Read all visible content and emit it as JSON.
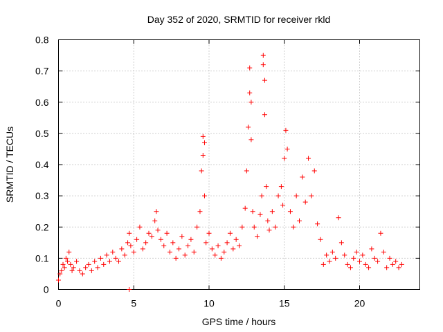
{
  "chart_data": {
    "type": "scatter",
    "title": "Day 352 of 2020, SRMTID for receiver rkld",
    "xlabel": "GPS time / hours",
    "ylabel": "SRMTID / TECUs",
    "xlim": [
      0,
      24
    ],
    "ylim": [
      0,
      0.8
    ],
    "xticks": [
      0,
      5,
      10,
      15,
      20
    ],
    "xtick_labels": [
      "0",
      "5",
      "10",
      "15",
      "20"
    ],
    "yticks": [
      0,
      0.1,
      0.2,
      0.3,
      0.4,
      0.5,
      0.6,
      0.7,
      0.8
    ],
    "ytick_labels": [
      "0",
      "0.1",
      "0.2",
      "0.3",
      "0.4",
      "0.5",
      "0.6",
      "0.7",
      "0.8"
    ],
    "grid": true,
    "marker": "plus",
    "series": [
      {
        "name": "SRMTID",
        "color": "#ff0000",
        "x": [
          0.0,
          0.1,
          0.2,
          0.3,
          0.4,
          0.5,
          0.6,
          0.7,
          0.8,
          0.9,
          1.0,
          1.2,
          1.4,
          1.6,
          1.8,
          2.0,
          2.2,
          2.4,
          2.6,
          2.8,
          3.0,
          3.2,
          3.4,
          3.6,
          3.8,
          4.0,
          4.2,
          4.4,
          4.6,
          4.7,
          4.8,
          5.0,
          5.2,
          5.4,
          5.6,
          5.8,
          6.0,
          6.2,
          6.4,
          6.5,
          6.6,
          6.8,
          7.0,
          7.2,
          7.4,
          7.6,
          7.8,
          8.0,
          8.2,
          8.4,
          8.6,
          8.8,
          9.0,
          9.2,
          9.4,
          9.5,
          9.6,
          9.6,
          9.7,
          9.7,
          9.8,
          10.0,
          10.2,
          10.4,
          10.6,
          10.8,
          11.0,
          11.2,
          11.4,
          11.6,
          11.8,
          12.0,
          12.2,
          12.4,
          12.5,
          12.6,
          12.7,
          12.7,
          12.8,
          12.8,
          12.9,
          13.0,
          13.2,
          13.4,
          13.5,
          13.6,
          13.6,
          13.7,
          13.7,
          13.8,
          13.9,
          14.0,
          14.2,
          14.4,
          14.6,
          14.8,
          14.9,
          15.0,
          15.1,
          15.2,
          15.4,
          15.6,
          15.8,
          16.0,
          16.2,
          16.4,
          16.6,
          16.8,
          17.0,
          17.2,
          17.4,
          17.6,
          17.8,
          18.0,
          18.2,
          18.4,
          18.6,
          18.8,
          19.0,
          19.2,
          19.4,
          19.6,
          19.8,
          20.0,
          20.2,
          20.4,
          20.6,
          20.8,
          21.0,
          21.2,
          21.4,
          21.6,
          21.8,
          22.0,
          22.2,
          22.4,
          22.6,
          22.8,
          4.7
        ],
        "y": [
          0.03,
          0.05,
          0.06,
          0.08,
          0.07,
          0.1,
          0.09,
          0.12,
          0.08,
          0.06,
          0.07,
          0.09,
          0.06,
          0.05,
          0.07,
          0.08,
          0.06,
          0.09,
          0.07,
          0.1,
          0.08,
          0.11,
          0.09,
          0.12,
          0.1,
          0.09,
          0.13,
          0.11,
          0.15,
          0.18,
          0.14,
          0.12,
          0.16,
          0.2,
          0.13,
          0.15,
          0.18,
          0.17,
          0.22,
          0.25,
          0.19,
          0.16,
          0.14,
          0.18,
          0.12,
          0.15,
          0.1,
          0.13,
          0.17,
          0.11,
          0.14,
          0.16,
          0.12,
          0.2,
          0.25,
          0.38,
          0.43,
          0.49,
          0.47,
          0.3,
          0.15,
          0.18,
          0.13,
          0.11,
          0.14,
          0.1,
          0.12,
          0.15,
          0.18,
          0.13,
          0.16,
          0.14,
          0.2,
          0.26,
          0.38,
          0.52,
          0.71,
          0.63,
          0.6,
          0.48,
          0.25,
          0.2,
          0.17,
          0.24,
          0.3,
          0.75,
          0.72,
          0.67,
          0.56,
          0.33,
          0.22,
          0.19,
          0.25,
          0.2,
          0.3,
          0.33,
          0.27,
          0.42,
          0.51,
          0.45,
          0.25,
          0.2,
          0.3,
          0.22,
          0.36,
          0.28,
          0.42,
          0.3,
          0.38,
          0.21,
          0.16,
          0.08,
          0.11,
          0.09,
          0.12,
          0.1,
          0.23,
          0.15,
          0.11,
          0.08,
          0.07,
          0.1,
          0.12,
          0.09,
          0.11,
          0.08,
          0.07,
          0.13,
          0.1,
          0.09,
          0.18,
          0.12,
          0.07,
          0.1,
          0.08,
          0.09,
          0.07,
          0.08,
          0.0
        ]
      }
    ]
  }
}
